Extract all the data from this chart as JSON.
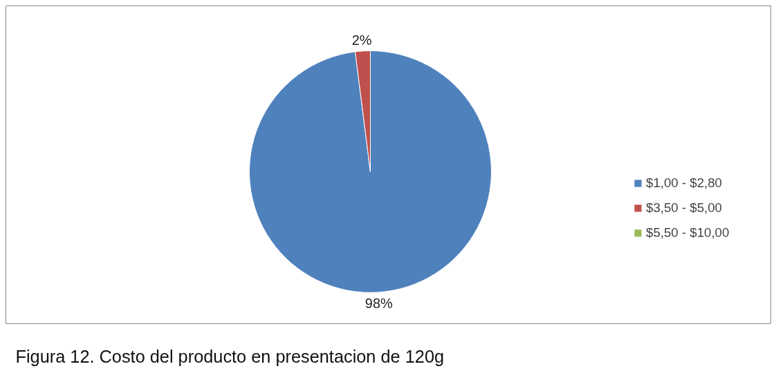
{
  "chart_data": {
    "type": "pie",
    "categories": [
      "$1,00 - $2,80",
      "$3,50 - $5,00",
      "$5,50 - $10,00"
    ],
    "values": [
      98,
      2,
      0
    ],
    "colors": [
      "#4f81bd",
      "#c0504d",
      "#9bbb59"
    ],
    "value_labels": [
      "98%",
      "2%",
      null
    ],
    "legend": "right",
    "annotations": [
      "Figura 12. Costo del producto en presentacion de 120g"
    ]
  }
}
